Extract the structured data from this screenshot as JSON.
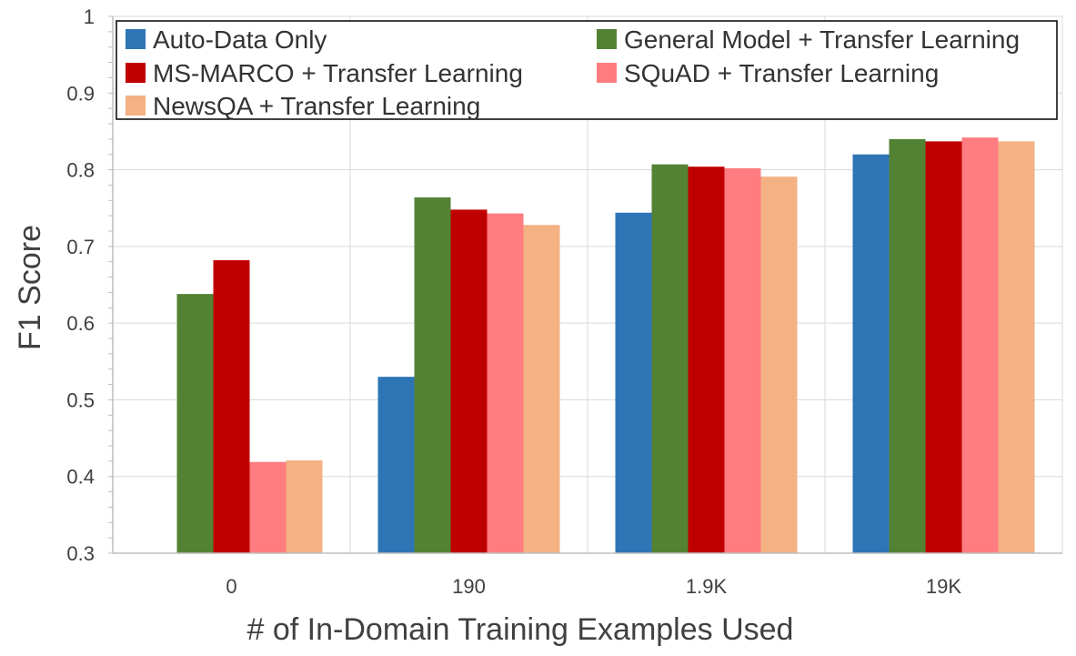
{
  "chart_data": {
    "type": "bar",
    "title": "",
    "xlabel": "# of In-Domain Training Examples Used",
    "ylabel": "F1 Score",
    "ylim": [
      0.3,
      1
    ],
    "yticks": [
      "0.3",
      "0.4",
      "0.5",
      "0.6",
      "0.7",
      "0.8",
      "0.9",
      "1"
    ],
    "ytick_values": [
      0.3,
      0.4,
      0.5,
      0.6,
      0.7,
      0.8,
      0.9,
      1.0
    ],
    "grid": true,
    "legend_position": "top",
    "categories": [
      "0",
      "190",
      "1.9K",
      "19K"
    ],
    "series": [
      {
        "name": "Auto-Data Only",
        "color": "#2e75b6",
        "values": [
          null,
          0.53,
          0.744,
          0.82
        ]
      },
      {
        "name": "General Model + Transfer Learning",
        "color": "#548235",
        "values": [
          0.638,
          0.764,
          0.807,
          0.84
        ]
      },
      {
        "name": "MS-MARCO + Transfer Learning",
        "color": "#c00000",
        "values": [
          0.682,
          0.748,
          0.804,
          0.837
        ]
      },
      {
        "name": "SQuAD + Transfer Learning",
        "color": "#ff7c80",
        "values": [
          0.419,
          0.743,
          0.802,
          0.842
        ]
      },
      {
        "name": "NewsQA + Transfer Learning",
        "color": "#f4b183",
        "values": [
          0.421,
          0.728,
          0.791,
          0.837
        ]
      }
    ]
  }
}
